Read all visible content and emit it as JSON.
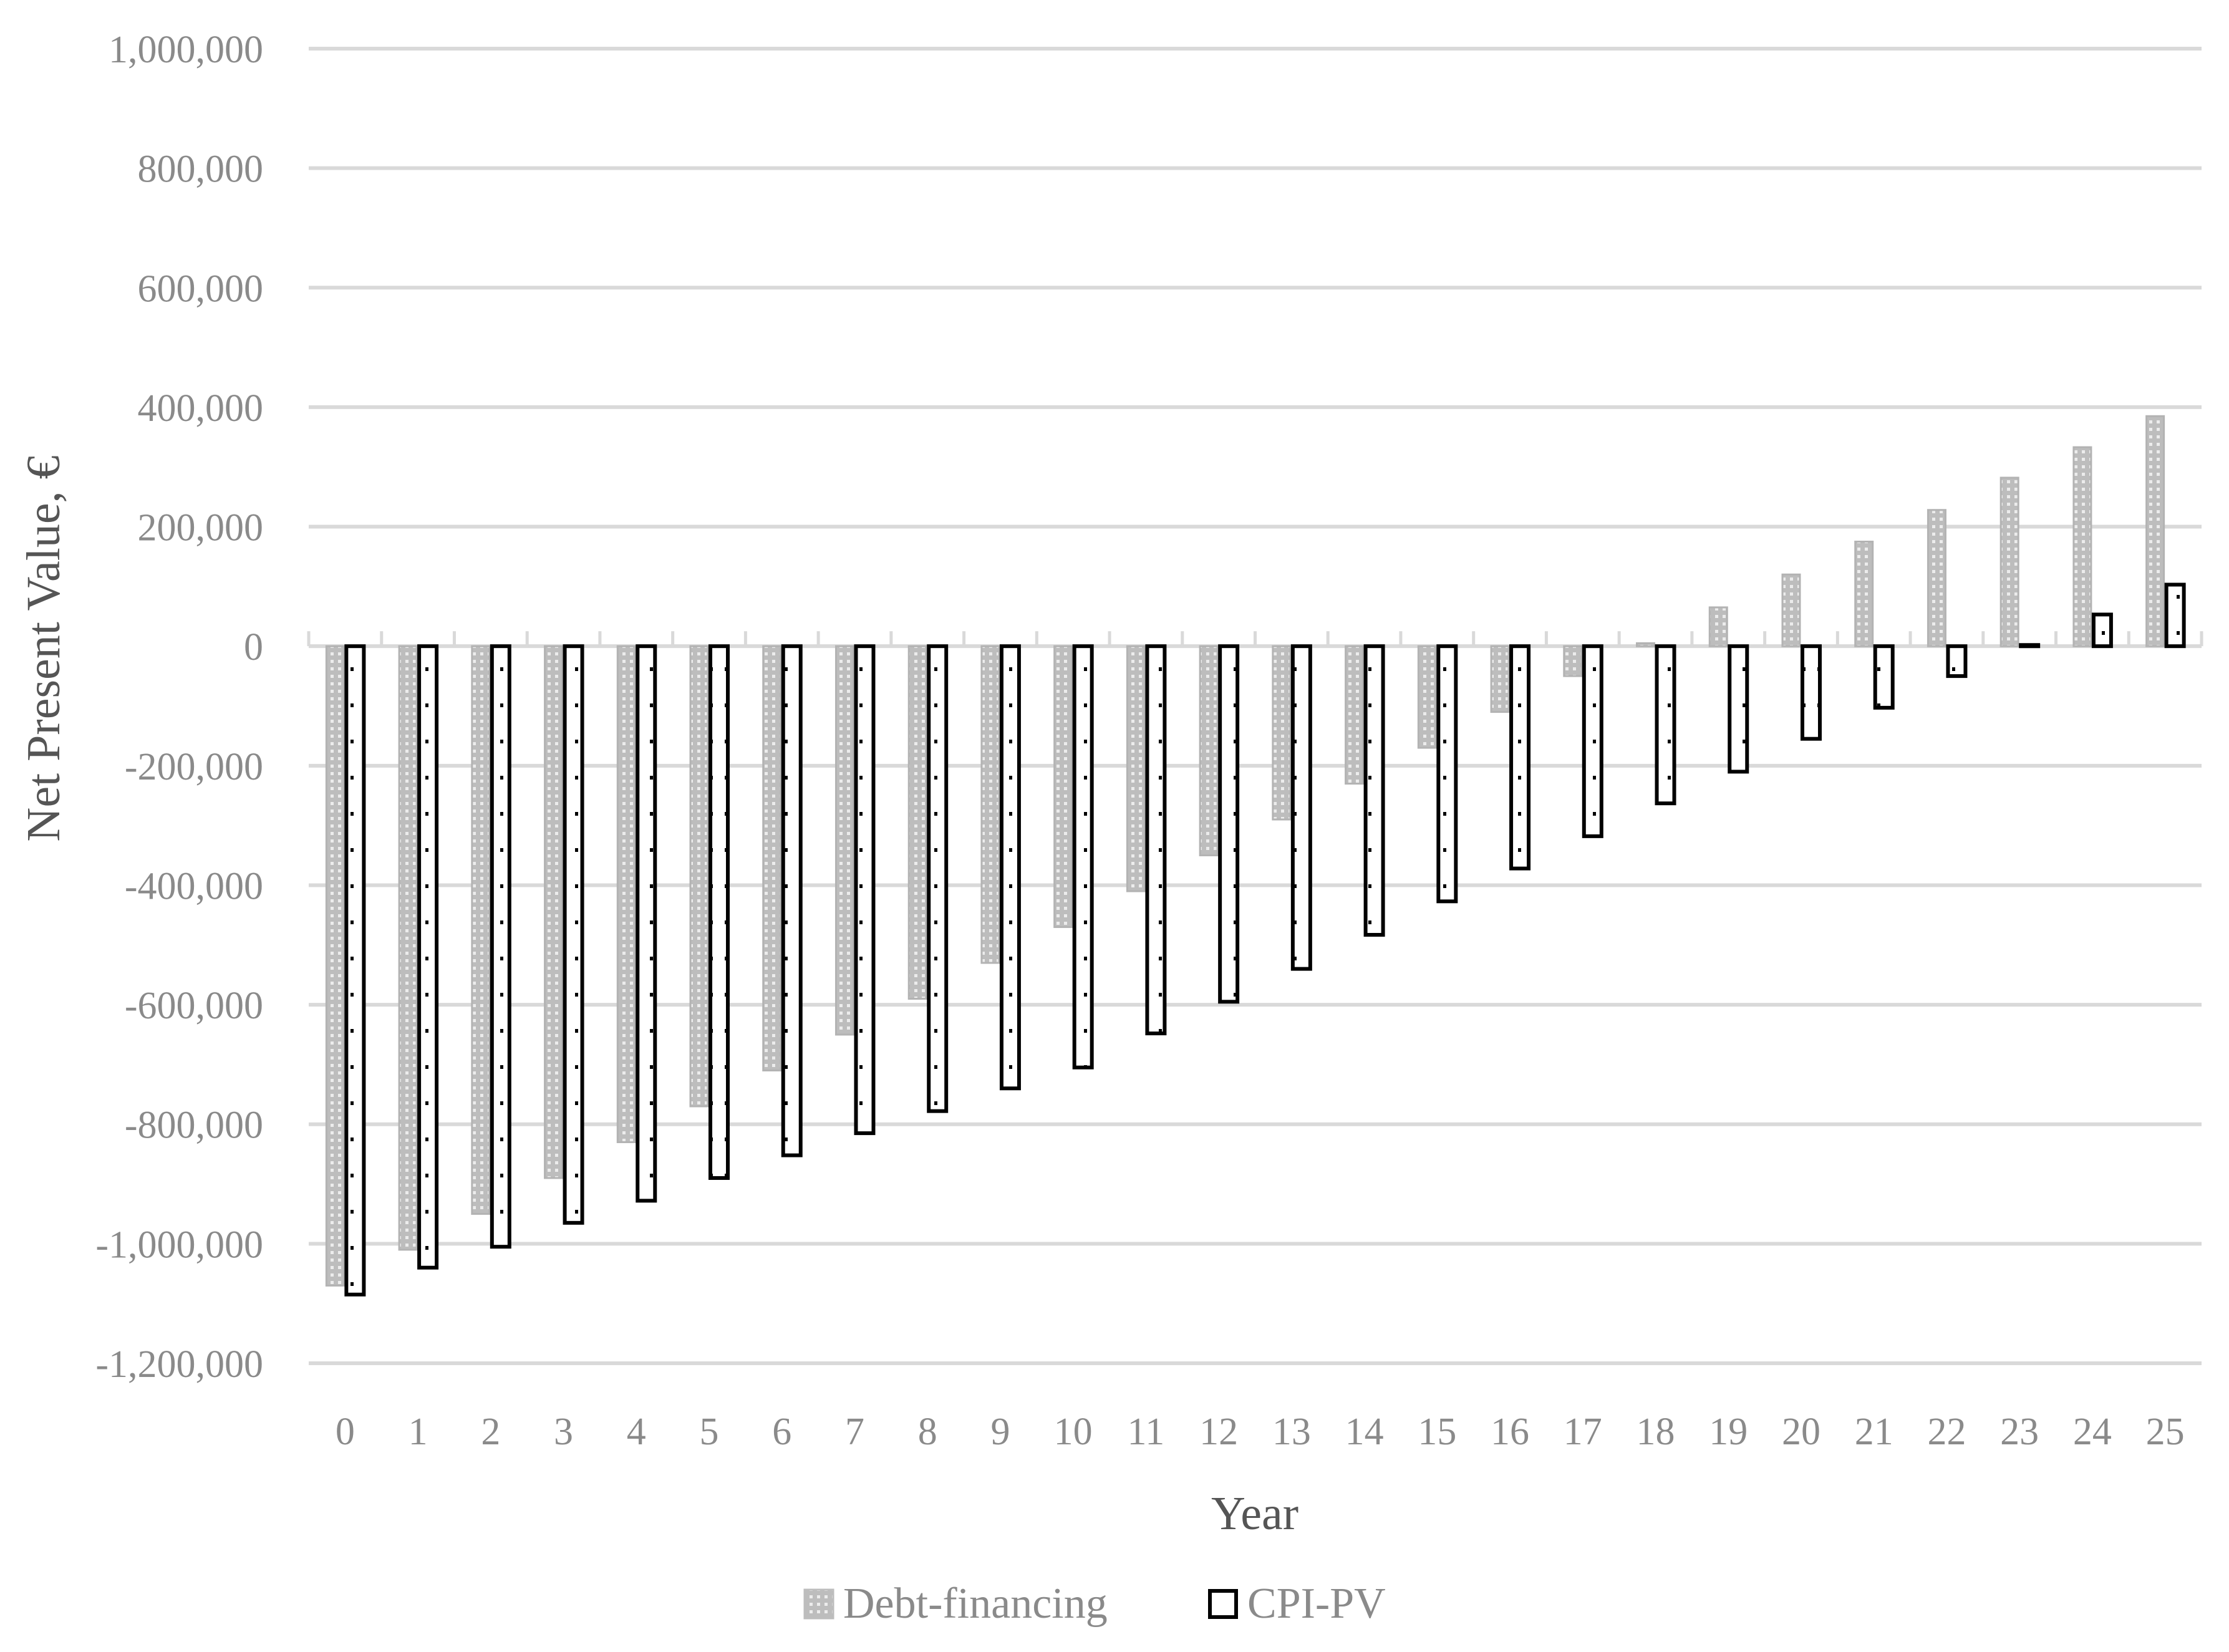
{
  "chart_data": {
    "type": "bar",
    "xlabel": "Year",
    "ylabel": "Net Present Value, €",
    "ylim": [
      -1200000,
      1000000
    ],
    "yticks": [
      1000000,
      800000,
      600000,
      400000,
      200000,
      0,
      -200000,
      -400000,
      -600000,
      -800000,
      -1000000,
      -1200000
    ],
    "ytick_labels": [
      "1,000,000",
      "800,000",
      "600,000",
      "400,000",
      "200,000",
      "0",
      "-200,000",
      "-400,000",
      "-600,000",
      "-800,000",
      "-1,000,000",
      "-1,200,000"
    ],
    "grid": true,
    "legend_position": "bottom",
    "categories": [
      "0",
      "1",
      "2",
      "3",
      "4",
      "5",
      "6",
      "7",
      "8",
      "9",
      "10",
      "11",
      "12",
      "13",
      "14",
      "15",
      "16",
      "17",
      "18",
      "19",
      "20",
      "21",
      "22",
      "23",
      "24",
      "25"
    ],
    "series": [
      {
        "name": "Debt-financing",
        "color": "#b3b3b3",
        "pattern": "dotted-grey",
        "values": [
          -1070000,
          -1010000,
          -950000,
          -890000,
          -830000,
          -770000,
          -710000,
          -650000,
          -590000,
          -530000,
          -470000,
          -410000,
          -350000,
          -290000,
          -230000,
          -170000,
          -110000,
          -50000,
          5000,
          65000,
          120000,
          175000,
          228000,
          282000,
          333000,
          385000
        ]
      },
      {
        "name": "CPI-PV",
        "color": "#000000",
        "pattern": "outline-dots",
        "values": [
          -1085000,
          -1040000,
          -1005000,
          -965000,
          -928000,
          -890000,
          -852000,
          -815000,
          -778000,
          -740000,
          -705000,
          -648000,
          -595000,
          -540000,
          -483000,
          -427000,
          -372000,
          -318000,
          -263000,
          -210000,
          -155000,
          -103000,
          -50000,
          2000,
          53000,
          103000
        ]
      }
    ]
  }
}
